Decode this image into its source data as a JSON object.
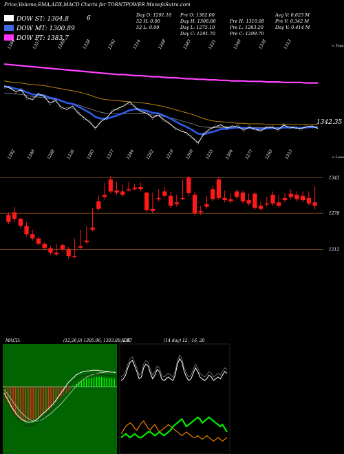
{
  "header": {
    "title": "Price,Volume,EMA,ADX,MACD Charts for TORNTPOWER MunafaSutra.com"
  },
  "legend": [
    {
      "label": "DOW ST: 1304.8",
      "color": "#ffffff",
      "swatch": "#ffffff"
    },
    {
      "label": "DOW MT: 1300.89",
      "color": "#ffffff",
      "swatch": "#4169e1"
    },
    {
      "label": "DOW PT: 1383.7",
      "color": "#ffffff",
      "swatch": "#ff33ff"
    }
  ],
  "marker": "6",
  "stats": [
    [
      "Day O: 1291.10",
      "Pre O: 1302.00",
      "Avg V: 0.623 M"
    ],
    [
      "52 H: 0.00",
      "Day H: 1306.80",
      "Pre H: 1310.90",
      "Pre V: 0.342 M"
    ],
    [
      "52 L: 0.00",
      "Day L: 1275.10",
      "Pre L: 1283.20",
      "Day V: 0.414 M"
    ],
    [
      "Day C: 1291.70",
      "Pre C: 1299.70"
    ]
  ],
  "colors": {
    "up": "#ff1a1a",
    "down": "#2d5be8",
    "emaLong": "#ff44ff",
    "emaMid": "#b8860b",
    "macdHist": "#ff2222",
    "macdPos": "#00cc00",
    "adxGreen": "#00ee00",
    "adxOrange": "#ff8800"
  },
  "chart_data": [
    {
      "type": "line",
      "name": "ema-panel",
      "top_tick_labels": [
        "1394",
        "1357",
        "1288",
        "1338",
        "1292",
        "1314",
        "1268",
        "1283",
        "1221",
        "1240",
        "1338",
        "1313"
      ],
      "bottom_tick_labels": [
        "1392",
        "1348",
        "1288",
        "1336",
        "1283",
        "1327",
        "1244",
        "1262",
        "1210",
        "1260",
        "1225",
        "1304",
        "1277",
        "1293",
        "1313"
      ],
      "right_label_top": "< Tops",
      "right_label_bottom": "< Lows",
      "price_label": "1342.35",
      "series": [
        {
          "name": "",
          "key": "price",
          "values": [
            1378,
            1374,
            1368,
            1370,
            1356,
            1352,
            1364,
            1358,
            1346,
            1350,
            1338,
            1333,
            1340,
            1326,
            1318,
            1309,
            1298,
            1310,
            1318,
            1330,
            1336,
            1340,
            1348,
            1337,
            1330,
            1326,
            1318,
            1322,
            1314,
            1306,
            1298,
            1292,
            1289,
            1279,
            1270,
            1286,
            1296,
            1300,
            1304,
            1298,
            1302,
            1300,
            1295,
            1299,
            1296,
            1292,
            1300,
            1299,
            1295,
            1303,
            1300,
            1298,
            1297,
            1300,
            1302,
            1297
          ]
        },
        {
          "name": "",
          "key": "ema_short",
          "values": [
            1378,
            1376,
            1373,
            1371,
            1366,
            1362,
            1361,
            1360,
            1356,
            1354,
            1350,
            1346,
            1344,
            1339,
            1333,
            1327,
            1319,
            1316,
            1316,
            1319,
            1323,
            1327,
            1332,
            1334,
            1333,
            1331,
            1327,
            1326,
            1322,
            1317,
            1311,
            1305,
            1300,
            1294,
            1287,
            1286,
            1289,
            1292,
            1296,
            1296,
            1298,
            1299,
            1298,
            1298,
            1297,
            1296,
            1297,
            1298,
            1297,
            1299,
            1299,
            1299,
            1298,
            1299,
            1300,
            1299
          ]
        },
        {
          "name": "",
          "key": "ema_mid",
          "values": [
            1365,
            1364,
            1363,
            1362,
            1360,
            1358,
            1357,
            1356,
            1354,
            1352,
            1350,
            1347,
            1345,
            1342,
            1338,
            1335,
            1331,
            1328,
            1326,
            1325,
            1325,
            1325,
            1326,
            1326,
            1326,
            1325,
            1323,
            1322,
            1320,
            1318,
            1315,
            1312,
            1309,
            1306,
            1302,
            1300,
            1299,
            1299,
            1299,
            1299,
            1299,
            1299,
            1299,
            1299,
            1299,
            1299,
            1299,
            1299,
            1299,
            1299,
            1299,
            1299,
            1299,
            1300,
            1300,
            1300
          ]
        },
        {
          "name": "",
          "key": "ema_gold",
          "values": [
            1388,
            1386,
            1385,
            1384,
            1382,
            1381,
            1380,
            1379,
            1377,
            1375,
            1373,
            1371,
            1369,
            1367,
            1364,
            1361,
            1357,
            1354,
            1352,
            1351,
            1350,
            1349,
            1348,
            1347,
            1346,
            1345,
            1343,
            1341,
            1339,
            1336,
            1333,
            1330,
            1327,
            1324,
            1320,
            1316,
            1313,
            1311,
            1310,
            1309,
            1308,
            1307,
            1307,
            1306,
            1306,
            1306,
            1305,
            1305,
            1305,
            1305,
            1305,
            1305,
            1305,
            1304,
            1304,
            1304
          ]
        },
        {
          "name": "",
          "key": "ema_long",
          "values": [
            1420,
            1419,
            1418,
            1417,
            1416,
            1415,
            1414,
            1413,
            1412,
            1411,
            1410,
            1409,
            1408,
            1407,
            1406,
            1405,
            1404,
            1403,
            1402,
            1401,
            1400,
            1400,
            1399,
            1398,
            1398,
            1397,
            1396,
            1396,
            1395,
            1394,
            1394,
            1393,
            1392,
            1392,
            1391,
            1391,
            1390,
            1390,
            1389,
            1389,
            1388,
            1388,
            1388,
            1387,
            1387,
            1387,
            1386,
            1386,
            1386,
            1385,
            1385,
            1385,
            1385,
            1384,
            1384,
            1384
          ]
        }
      ],
      "ylim": [
        1260,
        1440
      ]
    },
    {
      "type": "candlestick",
      "name": "price-panel",
      "ylim": [
        1190,
        1360
      ],
      "levels": [
        1343,
        1278,
        1212
      ],
      "level_labels": [
        "1343",
        "1278",
        "1212"
      ],
      "candles": [
        [
          1275,
          1280,
          1262,
          1258
        ],
        [
          1280,
          1290,
          1268,
          1262
        ],
        [
          1268,
          1270,
          1255,
          1250
        ],
        [
          1255,
          1262,
          1240,
          1236
        ],
        [
          1240,
          1248,
          1232,
          1228
        ],
        [
          1232,
          1236,
          1222,
          1218
        ],
        [
          1222,
          1225,
          1214,
          1210
        ],
        [
          1214,
          1218,
          1206,
          1202
        ],
        [
          1206,
          1222,
          1203,
          1200
        ],
        [
          1220,
          1223,
          1212,
          1208
        ],
        [
          1212,
          1216,
          1200,
          1195
        ],
        [
          1200,
          1232,
          1198,
          1195
        ],
        [
          1218,
          1248,
          1215,
          1212
        ],
        [
          1228,
          1254,
          1225,
          1222
        ],
        [
          1252,
          1288,
          1248,
          1245
        ],
        [
          1300,
          1310,
          1286,
          1282
        ],
        [
          1312,
          1334,
          1308,
          1304
        ],
        [
          1340,
          1346,
          1318,
          1314
        ],
        [
          1320,
          1335,
          1316,
          1312
        ],
        [
          1318,
          1330,
          1312,
          1308
        ],
        [
          1322,
          1335,
          1320,
          1318
        ],
        [
          1325,
          1332,
          1322,
          1320
        ],
        [
          1326,
          1334,
          1322,
          1318
        ],
        [
          1316,
          1318,
          1284,
          1280
        ],
        [
          1286,
          1316,
          1282,
          1278
        ],
        [
          1306,
          1322,
          1304,
          1300
        ],
        [
          1318,
          1326,
          1310,
          1306
        ],
        [
          1310,
          1318,
          1292,
          1288
        ],
        [
          1298,
          1312,
          1295,
          1290
        ],
        [
          1306,
          1340,
          1305,
          1302
        ],
        [
          1344,
          1346,
          1315,
          1310
        ],
        [
          1312,
          1318,
          1278,
          1274
        ],
        [
          1282,
          1292,
          1280,
          1275
        ],
        [
          1295,
          1310,
          1290,
          1286
        ],
        [
          1322,
          1328,
          1304,
          1300
        ],
        [
          1340,
          1345,
          1306,
          1302
        ],
        [
          1306,
          1320,
          1302,
          1298
        ],
        [
          1304,
          1315,
          1300,
          1296
        ],
        [
          1318,
          1322,
          1308,
          1304
        ],
        [
          1316,
          1320,
          1300,
          1296
        ],
        [
          1302,
          1314,
          1296,
          1292
        ],
        [
          1314,
          1318,
          1288,
          1284
        ],
        [
          1292,
          1300,
          1286,
          1282
        ],
        [
          1296,
          1308,
          1294,
          1290
        ],
        [
          1312,
          1318,
          1296,
          1292
        ],
        [
          1298,
          1312,
          1292,
          1288
        ],
        [
          1306,
          1315,
          1302,
          1298
        ],
        [
          1314,
          1322,
          1308,
          1304
        ],
        [
          1312,
          1318,
          1304,
          1300
        ],
        [
          1310,
          1318,
          1302,
          1298
        ],
        [
          1306,
          1318,
          1296,
          1292
        ],
        [
          1298,
          1326,
          1292,
          1285
        ]
      ]
    },
    {
      "type": "bar",
      "name": "macd-panel",
      "title": "MACD:",
      "params": "(12,26,9) 1305.96, 1303.89, 2.07",
      "hist": [
        -22,
        -28,
        -34,
        -40,
        -46,
        -50,
        -54,
        -56,
        -57,
        -56,
        -55,
        -54,
        -52,
        -50,
        -48,
        -45,
        -42,
        -38,
        -34,
        -30,
        -26,
        -22,
        -18,
        -14,
        -10,
        -6,
        -2,
        2,
        5,
        8,
        10,
        12,
        13,
        14,
        15,
        15,
        16,
        16,
        16,
        15,
        15,
        14,
        14,
        13
      ],
      "macd": [
        -10,
        -18,
        -26,
        -34,
        -40,
        -46,
        -50,
        -54,
        -56,
        -58,
        -58,
        -57,
        -55,
        -52,
        -48,
        -44,
        -40,
        -36,
        -32,
        -28,
        -22,
        -16,
        -10,
        -4,
        2,
        8,
        12,
        16,
        20,
        22,
        24,
        25,
        26,
        26,
        27,
        27,
        27,
        26,
        26,
        25,
        25,
        24,
        24,
        23
      ],
      "signal": [
        -5,
        -10,
        -16,
        -22,
        -28,
        -34,
        -39,
        -44,
        -48,
        -51,
        -54,
        -56,
        -56,
        -56,
        -55,
        -53,
        -50,
        -47,
        -44,
        -40,
        -36,
        -32,
        -28,
        -23,
        -18,
        -13,
        -8,
        -3,
        2,
        6,
        10,
        13,
        16,
        18,
        20,
        21,
        22,
        23,
        23,
        24,
        24,
        24,
        24,
        24
      ],
      "ylim": [
        -110,
        70
      ]
    },
    {
      "type": "line",
      "name": "adx-panel",
      "title": "ADX",
      "params": "(14 day) 12, -16, 20",
      "series": [
        {
          "name": "",
          "key": "adx_white",
          "values": [
            20,
            22,
            26,
            34,
            40,
            42,
            36,
            30,
            22,
            24,
            34,
            38,
            36,
            28,
            22,
            26,
            32,
            30,
            22,
            20,
            22,
            24,
            22,
            20,
            26,
            38,
            44,
            40,
            30,
            24,
            20,
            22,
            28,
            34,
            30,
            24,
            22,
            20,
            22,
            26,
            24,
            20,
            22,
            24,
            22,
            26,
            30,
            28
          ]
        },
        {
          "name": "",
          "key": "adx_green",
          "values": [
            -42,
            -40,
            -38,
            -40,
            -42,
            -40,
            -38,
            -40,
            -42,
            -42,
            -40,
            -38,
            -36,
            -36,
            -38,
            -40,
            -38,
            -36,
            -38,
            -40,
            -38,
            -36,
            -34,
            -30,
            -28,
            -26,
            -24,
            -22,
            -26,
            -30,
            -28,
            -26,
            -24,
            -22,
            -20,
            -22,
            -26,
            -24,
            -22,
            -20,
            -22,
            -24,
            -26,
            -28,
            -30,
            -28,
            -32,
            -36
          ]
        },
        {
          "name": "",
          "key": "adx_orange",
          "values": [
            -38,
            -34,
            -30,
            -28,
            -26,
            -28,
            -32,
            -34,
            -30,
            -26,
            -24,
            -28,
            -32,
            -34,
            -30,
            -28,
            -32,
            -36,
            -34,
            -32,
            -30,
            -28,
            -30,
            -32,
            -34,
            -36,
            -38,
            -40,
            -38,
            -36,
            -38,
            -40,
            -42,
            -42,
            -40,
            -42,
            -44,
            -42,
            -40,
            -42,
            -44,
            -46,
            -44,
            -42,
            -44,
            -46,
            -44,
            -42
          ]
        }
      ],
      "ylim": [
        -60,
        60
      ]
    }
  ]
}
